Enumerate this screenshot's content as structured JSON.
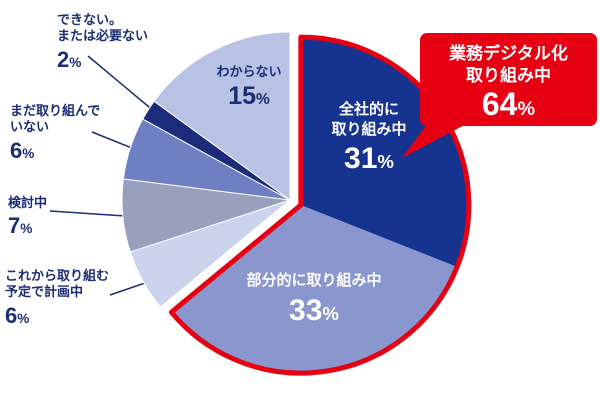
{
  "chart_data": {
    "type": "pie",
    "unit": "%",
    "start_angle": "top",
    "direction": "clockwise",
    "segments": [
      {
        "label": "全社的に取り組み中",
        "value": 31,
        "color": "#15338f",
        "highlighted": true
      },
      {
        "label": "部分的に取り組み中",
        "value": 33,
        "color": "#8a96ce",
        "highlighted": true
      },
      {
        "label": "これから取り組む予定で計画中",
        "value": 6,
        "color": "#ccd3ec",
        "highlighted": false
      },
      {
        "label": "検討中",
        "value": 7,
        "color": "#99a0bd",
        "highlighted": false
      },
      {
        "label": "まだ取り組んでいない",
        "value": 6,
        "color": "#6e7fc4",
        "highlighted": false
      },
      {
        "label": "できない。または必要ない",
        "value": 2,
        "color": "#1c2c7a",
        "highlighted": false
      },
      {
        "label": "わからない",
        "value": 15,
        "color": "#b8c2e4",
        "highlighted": false
      }
    ],
    "highlight": {
      "label": "業務デジタル化 取り組み中",
      "value": 64,
      "outline_color": "#e60012"
    }
  },
  "labels": {
    "percent_sign": "%",
    "company_wide": {
      "line1": "全社的に",
      "line2": "取り組み中",
      "value": "31"
    },
    "partial": {
      "line1": "部分的に取り組み中",
      "value": "33"
    },
    "planning": {
      "line1": "これから取り組む",
      "line2": "予定で計画中",
      "value": "6"
    },
    "considering": {
      "line1": "検討中",
      "value": "7"
    },
    "not_yet": {
      "line1": "まだ取り組んで",
      "line2": "いない",
      "value": "6"
    },
    "cannot": {
      "line1": "できない。",
      "line2": "または必要ない",
      "value": "2"
    },
    "unknown": {
      "line1": "わからない",
      "value": "15"
    }
  },
  "callout": {
    "line1": "業務デジタル化",
    "line2": "取り組み中",
    "value": "64"
  }
}
